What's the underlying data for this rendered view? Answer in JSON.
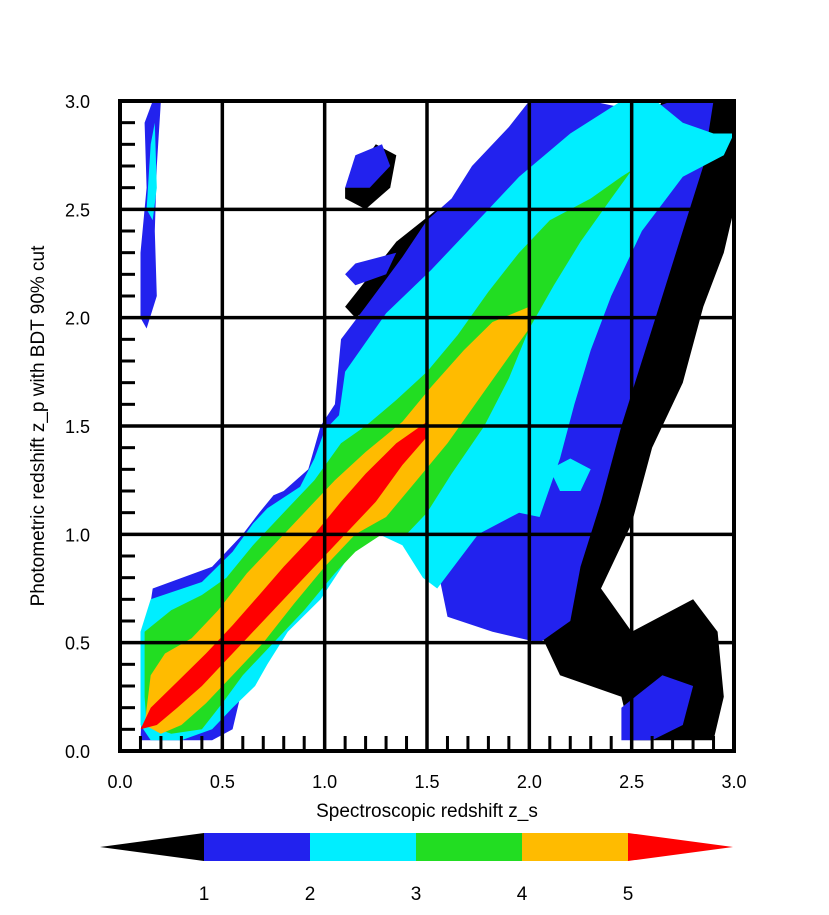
{
  "chart_data": {
    "type": "heatmap",
    "xlabel": "Spectroscopic redshift z_s",
    "ylabel": "Photometric redshift z_p with BDT 90% cut",
    "xlim": [
      0.0,
      3.0
    ],
    "ylim": [
      0.0,
      3.0
    ],
    "x_ticks": [
      "0.0",
      "0.5",
      "1.0",
      "1.5",
      "2.0",
      "2.5",
      "3.0"
    ],
    "y_ticks": [
      "0.0",
      "0.5",
      "1.0",
      "1.5",
      "2.0",
      "2.5",
      "3.0"
    ],
    "grid": true,
    "colorbar": {
      "position": "bottom",
      "ticks": [
        "1",
        "2",
        "3",
        "4",
        "5"
      ],
      "colors": [
        "#000000",
        "#2222ee",
        "#00eeff",
        "#22dd22",
        "#ffbb00",
        "#ff0000"
      ]
    },
    "levels": [
      {
        "level": 1,
        "color": "#000000",
        "polygons": [
          [
            [
              2.0,
              1.0
            ],
            [
              2.05,
              1.25
            ],
            [
              2.08,
              1.6
            ],
            [
              2.2,
              1.95
            ],
            [
              2.35,
              2.3
            ],
            [
              2.45,
              2.6
            ],
            [
              2.55,
              2.85
            ],
            [
              2.65,
              3.0
            ],
            [
              3.0,
              3.0
            ],
            [
              3.0,
              2.5
            ],
            [
              2.95,
              2.3
            ],
            [
              2.85,
              2.05
            ],
            [
              2.75,
              1.7
            ],
            [
              2.6,
              1.4
            ],
            [
              2.5,
              1.05
            ],
            [
              2.35,
              0.75
            ],
            [
              2.5,
              0.55
            ],
            [
              2.8,
              0.7
            ],
            [
              2.92,
              0.55
            ],
            [
              2.95,
              0.25
            ],
            [
              2.9,
              0.05
            ],
            [
              2.5,
              0.05
            ],
            [
              2.45,
              0.25
            ],
            [
              2.15,
              0.35
            ],
            [
              2.05,
              0.55
            ],
            [
              1.9,
              0.65
            ],
            [
              1.8,
              0.85
            ],
            [
              1.7,
              1.0
            ]
          ],
          [
            [
              1.1,
              2.6
            ],
            [
              1.25,
              2.8
            ],
            [
              1.35,
              2.75
            ],
            [
              1.32,
              2.6
            ],
            [
              1.2,
              2.5
            ],
            [
              1.1,
              2.55
            ]
          ],
          [
            [
              1.1,
              2.05
            ],
            [
              1.35,
              2.35
            ],
            [
              1.55,
              2.5
            ],
            [
              1.6,
              2.5
            ],
            [
              1.52,
              2.35
            ],
            [
              1.3,
              2.1
            ],
            [
              1.15,
              2.0
            ]
          ]
        ]
      },
      {
        "level": 2,
        "color": "#2222ee",
        "polygons": [
          [
            [
              0.1,
              0.05
            ],
            [
              0.12,
              0.5
            ],
            [
              0.16,
              0.75
            ],
            [
              0.45,
              0.85
            ],
            [
              0.6,
              1.0
            ],
            [
              0.68,
              1.1
            ],
            [
              0.75,
              1.18
            ],
            [
              0.8,
              1.2
            ],
            [
              0.92,
              1.3
            ],
            [
              0.98,
              1.5
            ],
            [
              1.05,
              1.6
            ],
            [
              1.08,
              1.9
            ],
            [
              1.2,
              2.05
            ],
            [
              1.38,
              2.28
            ],
            [
              1.5,
              2.45
            ],
            [
              1.62,
              2.55
            ],
            [
              1.72,
              2.7
            ],
            [
              1.9,
              2.88
            ],
            [
              2.0,
              3.0
            ],
            [
              2.3,
              3.0
            ],
            [
              2.55,
              2.95
            ],
            [
              2.7,
              3.0
            ],
            [
              2.9,
              3.0
            ],
            [
              2.85,
              2.7
            ],
            [
              2.75,
              2.4
            ],
            [
              2.65,
              2.1
            ],
            [
              2.55,
              1.8
            ],
            [
              2.45,
              1.5
            ],
            [
              2.35,
              1.15
            ],
            [
              2.25,
              0.85
            ],
            [
              2.2,
              0.6
            ],
            [
              2.05,
              0.5
            ],
            [
              1.82,
              0.55
            ],
            [
              1.6,
              0.62
            ],
            [
              1.55,
              0.85
            ],
            [
              1.45,
              0.95
            ],
            [
              1.22,
              1.1
            ],
            [
              1.05,
              0.95
            ],
            [
              0.95,
              0.75
            ],
            [
              0.75,
              0.55
            ],
            [
              0.68,
              0.35
            ],
            [
              0.6,
              0.3
            ],
            [
              0.55,
              0.1
            ],
            [
              0.45,
              0.05
            ]
          ],
          [
            [
              2.45,
              0.05
            ],
            [
              2.45,
              0.2
            ],
            [
              2.65,
              0.35
            ],
            [
              2.8,
              0.3
            ],
            [
              2.75,
              0.12
            ],
            [
              2.6,
              0.05
            ]
          ],
          [
            [
              0.1,
              2.3
            ],
            [
              0.13,
              2.6
            ],
            [
              0.12,
              2.9
            ],
            [
              0.16,
              3.0
            ],
            [
              0.2,
              3.0
            ],
            [
              0.18,
              2.7
            ],
            [
              0.17,
              2.4
            ],
            [
              0.18,
              2.1
            ],
            [
              0.13,
              1.95
            ],
            [
              0.1,
              2.0
            ]
          ],
          [
            [
              1.1,
              2.6
            ],
            [
              1.15,
              2.75
            ],
            [
              1.28,
              2.8
            ],
            [
              1.32,
              2.7
            ],
            [
              1.22,
              2.6
            ]
          ],
          [
            [
              1.1,
              2.2
            ],
            [
              1.15,
              2.25
            ],
            [
              1.35,
              2.3
            ],
            [
              1.3,
              2.2
            ],
            [
              1.15,
              2.15
            ]
          ]
        ]
      },
      {
        "level": 3,
        "color": "#00eeff",
        "polygons": [
          [
            [
              0.1,
              0.12
            ],
            [
              0.1,
              0.55
            ],
            [
              0.15,
              0.7
            ],
            [
              0.4,
              0.78
            ],
            [
              0.55,
              0.92
            ],
            [
              0.65,
              1.05
            ],
            [
              0.72,
              1.12
            ],
            [
              0.88,
              1.22
            ],
            [
              0.95,
              1.35
            ],
            [
              1.0,
              1.48
            ],
            [
              1.07,
              1.55
            ],
            [
              1.1,
              1.75
            ],
            [
              1.3,
              2.02
            ],
            [
              1.52,
              2.22
            ],
            [
              1.75,
              2.45
            ],
            [
              1.95,
              2.65
            ],
            [
              2.2,
              2.85
            ],
            [
              2.45,
              3.0
            ],
            [
              2.62,
              3.0
            ],
            [
              2.75,
              2.9
            ],
            [
              2.9,
              2.85
            ],
            [
              3.0,
              2.85
            ],
            [
              2.95,
              2.75
            ],
            [
              2.75,
              2.65
            ],
            [
              2.55,
              2.4
            ],
            [
              2.4,
              2.1
            ],
            [
              2.3,
              1.85
            ],
            [
              2.22,
              1.6
            ],
            [
              2.15,
              1.35
            ],
            [
              2.05,
              1.08
            ],
            [
              1.95,
              1.1
            ],
            [
              1.75,
              1.0
            ],
            [
              1.55,
              0.75
            ],
            [
              1.48,
              0.8
            ],
            [
              1.38,
              0.95
            ],
            [
              1.22,
              1.02
            ],
            [
              1.12,
              0.9
            ],
            [
              0.98,
              0.7
            ],
            [
              0.82,
              0.55
            ],
            [
              0.72,
              0.4
            ],
            [
              0.66,
              0.3
            ],
            [
              0.55,
              0.2
            ],
            [
              0.45,
              0.1
            ],
            [
              0.3,
              0.05
            ],
            [
              0.15,
              0.05
            ]
          ],
          [
            [
              0.13,
              2.5
            ],
            [
              0.15,
              2.8
            ],
            [
              0.17,
              2.9
            ],
            [
              0.18,
              2.6
            ],
            [
              0.16,
              2.45
            ]
          ],
          [
            [
              2.1,
              1.3
            ],
            [
              2.2,
              1.35
            ],
            [
              2.3,
              1.3
            ],
            [
              2.25,
              1.2
            ],
            [
              2.15,
              1.2
            ]
          ]
        ]
      },
      {
        "level": 4,
        "color": "#22dd22",
        "polygons": [
          [
            [
              0.12,
              0.25
            ],
            [
              0.12,
              0.55
            ],
            [
              0.25,
              0.65
            ],
            [
              0.4,
              0.72
            ],
            [
              0.52,
              0.8
            ],
            [
              0.65,
              0.95
            ],
            [
              0.82,
              1.12
            ],
            [
              0.95,
              1.25
            ],
            [
              1.08,
              1.42
            ],
            [
              1.2,
              1.5
            ],
            [
              1.35,
              1.62
            ],
            [
              1.5,
              1.75
            ],
            [
              1.65,
              1.92
            ],
            [
              1.8,
              2.12
            ],
            [
              1.95,
              2.3
            ],
            [
              2.1,
              2.45
            ],
            [
              2.3,
              2.55
            ],
            [
              2.45,
              2.65
            ],
            [
              2.5,
              2.68
            ],
            [
              2.4,
              2.55
            ],
            [
              2.25,
              2.35
            ],
            [
              2.12,
              2.15
            ],
            [
              2.0,
              1.95
            ],
            [
              1.9,
              1.72
            ],
            [
              1.78,
              1.5
            ],
            [
              1.62,
              1.28
            ],
            [
              1.5,
              1.1
            ],
            [
              1.4,
              1.0
            ],
            [
              1.28,
              1.0
            ],
            [
              1.15,
              0.92
            ],
            [
              1.05,
              0.82
            ],
            [
              0.9,
              0.65
            ],
            [
              0.75,
              0.5
            ],
            [
              0.6,
              0.35
            ],
            [
              0.5,
              0.22
            ],
            [
              0.4,
              0.1
            ],
            [
              0.25,
              0.08
            ],
            [
              0.13,
              0.12
            ]
          ]
        ]
      },
      {
        "level": 5,
        "color": "#ffbb00",
        "polygons": [
          [
            [
              0.12,
              0.12
            ],
            [
              0.15,
              0.35
            ],
            [
              0.22,
              0.45
            ],
            [
              0.35,
              0.52
            ],
            [
              0.48,
              0.65
            ],
            [
              0.62,
              0.82
            ],
            [
              0.75,
              0.95
            ],
            [
              0.9,
              1.1
            ],
            [
              1.05,
              1.25
            ],
            [
              1.2,
              1.38
            ],
            [
              1.38,
              1.52
            ],
            [
              1.52,
              1.68
            ],
            [
              1.68,
              1.85
            ],
            [
              1.82,
              1.98
            ],
            [
              2.0,
              2.05
            ],
            [
              2.0,
              1.95
            ],
            [
              1.9,
              1.82
            ],
            [
              1.75,
              1.62
            ],
            [
              1.6,
              1.42
            ],
            [
              1.45,
              1.25
            ],
            [
              1.3,
              1.08
            ],
            [
              1.15,
              1.0
            ],
            [
              1.0,
              0.85
            ],
            [
              0.85,
              0.68
            ],
            [
              0.7,
              0.5
            ],
            [
              0.55,
              0.35
            ],
            [
              0.42,
              0.22
            ],
            [
              0.3,
              0.12
            ],
            [
              0.2,
              0.08
            ]
          ]
        ]
      },
      {
        "level": 6,
        "color": "#ff0000",
        "polygons": [
          [
            [
              0.1,
              0.1
            ],
            [
              0.15,
              0.2
            ],
            [
              0.28,
              0.32
            ],
            [
              0.42,
              0.45
            ],
            [
              0.55,
              0.58
            ],
            [
              0.68,
              0.72
            ],
            [
              0.8,
              0.85
            ],
            [
              0.95,
              1.0
            ],
            [
              1.08,
              1.15
            ],
            [
              1.2,
              1.28
            ],
            [
              1.35,
              1.42
            ],
            [
              1.5,
              1.52
            ],
            [
              1.5,
              1.45
            ],
            [
              1.38,
              1.32
            ],
            [
              1.25,
              1.15
            ],
            [
              1.1,
              1.0
            ],
            [
              0.95,
              0.85
            ],
            [
              0.8,
              0.7
            ],
            [
              0.65,
              0.55
            ],
            [
              0.52,
              0.42
            ],
            [
              0.4,
              0.3
            ],
            [
              0.28,
              0.2
            ],
            [
              0.18,
              0.12
            ]
          ]
        ]
      }
    ]
  }
}
